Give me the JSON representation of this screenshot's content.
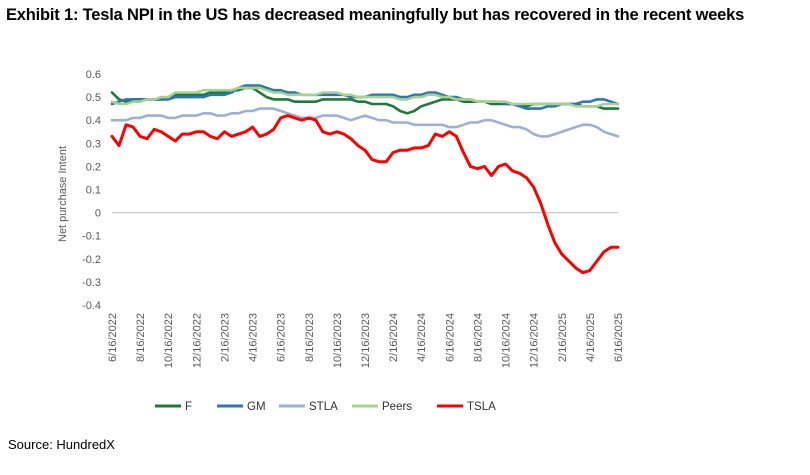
{
  "title": "Exhibit 1: Tesla NPI in the US has decreased meaningfully but has recovered in the recent weeks",
  "source": "Source: HundredX",
  "chart_data": {
    "type": "line",
    "ylabel": "Net purchase Intent",
    "ylim": [
      -0.4,
      0.6
    ],
    "yticks": [
      0.6,
      0.5,
      0.4,
      0.3,
      0.2,
      0.1,
      0,
      -0.1,
      -0.2,
      -0.3,
      -0.4
    ],
    "yticks_labels": [
      "0.6",
      "0.5",
      "0.4",
      "0.3",
      "0.2",
      "0.1",
      "0",
      "-0.1",
      "-0.2",
      "-0.3",
      "-0.4"
    ],
    "xticks": [
      "6/16/2022",
      "8/16/2022",
      "10/16/2022",
      "12/16/2022",
      "2/16/2023",
      "4/16/2023",
      "6/16/2023",
      "8/16/2023",
      "10/16/2023",
      "12/16/2023",
      "2/16/2024",
      "4/16/2024",
      "6/16/2024",
      "8/16/2024",
      "10/16/2024",
      "12/16/2024",
      "2/16/2025",
      "4/16/2025",
      "6/16/2025"
    ],
    "x_months_from_start": [
      0,
      0.5,
      1,
      1.5,
      2,
      2.5,
      3,
      3.5,
      4,
      4.5,
      5,
      5.5,
      6,
      6.5,
      7,
      7.5,
      8,
      8.5,
      9,
      9.5,
      10,
      10.5,
      11,
      11.5,
      12,
      12.5,
      13,
      13.5,
      14,
      14.5,
      15,
      15.5,
      16,
      16.5,
      17,
      17.5,
      18,
      18.5,
      19,
      19.5,
      20,
      20.5,
      21,
      21.5,
      22,
      22.5,
      23,
      23.5,
      24,
      24.5,
      25,
      25.5,
      26,
      26.5,
      27,
      27.5,
      28,
      28.5,
      29,
      29.5,
      30,
      30.5,
      31,
      31.5,
      32,
      32.5,
      33,
      33.5,
      34,
      34.5,
      35,
      35.5,
      36
    ],
    "grid": false,
    "legend_position": "bottom",
    "series": [
      {
        "name": "F",
        "color": "#1e7a38",
        "values": [
          0.52,
          0.49,
          0.48,
          0.49,
          0.49,
          0.49,
          0.49,
          0.49,
          0.5,
          0.51,
          0.51,
          0.51,
          0.51,
          0.51,
          0.52,
          0.52,
          0.52,
          0.53,
          0.53,
          0.54,
          0.54,
          0.52,
          0.5,
          0.49,
          0.49,
          0.49,
          0.48,
          0.48,
          0.48,
          0.48,
          0.49,
          0.49,
          0.49,
          0.49,
          0.49,
          0.48,
          0.48,
          0.47,
          0.47,
          0.47,
          0.46,
          0.44,
          0.43,
          0.44,
          0.46,
          0.47,
          0.48,
          0.49,
          0.49,
          0.49,
          0.48,
          0.48,
          0.48,
          0.48,
          0.47,
          0.47,
          0.47,
          0.47,
          0.46,
          0.46,
          0.47,
          0.47,
          0.47,
          0.47,
          0.47,
          0.47,
          0.47,
          0.46,
          0.46,
          0.46,
          0.45,
          0.45,
          0.45
        ]
      },
      {
        "name": "GM",
        "color": "#2e75b6",
        "values": [
          0.47,
          0.48,
          0.49,
          0.49,
          0.49,
          0.49,
          0.49,
          0.49,
          0.49,
          0.5,
          0.5,
          0.5,
          0.5,
          0.5,
          0.51,
          0.51,
          0.51,
          0.52,
          0.54,
          0.55,
          0.55,
          0.55,
          0.54,
          0.53,
          0.53,
          0.52,
          0.52,
          0.51,
          0.51,
          0.51,
          0.51,
          0.51,
          0.51,
          0.51,
          0.5,
          0.5,
          0.5,
          0.51,
          0.51,
          0.51,
          0.51,
          0.5,
          0.5,
          0.51,
          0.51,
          0.52,
          0.52,
          0.51,
          0.5,
          0.5,
          0.49,
          0.49,
          0.48,
          0.48,
          0.48,
          0.48,
          0.47,
          0.47,
          0.46,
          0.45,
          0.45,
          0.45,
          0.46,
          0.46,
          0.47,
          0.47,
          0.47,
          0.48,
          0.48,
          0.49,
          0.49,
          0.48,
          0.47
        ]
      },
      {
        "name": "STLA",
        "color": "#9dafd2",
        "values": [
          0.4,
          0.4,
          0.4,
          0.41,
          0.41,
          0.42,
          0.42,
          0.42,
          0.41,
          0.41,
          0.42,
          0.42,
          0.42,
          0.43,
          0.43,
          0.42,
          0.42,
          0.43,
          0.43,
          0.44,
          0.44,
          0.45,
          0.45,
          0.45,
          0.44,
          0.43,
          0.42,
          0.41,
          0.41,
          0.41,
          0.42,
          0.42,
          0.42,
          0.41,
          0.4,
          0.41,
          0.42,
          0.41,
          0.4,
          0.4,
          0.39,
          0.39,
          0.39,
          0.38,
          0.38,
          0.38,
          0.38,
          0.38,
          0.37,
          0.37,
          0.38,
          0.39,
          0.39,
          0.4,
          0.4,
          0.39,
          0.38,
          0.37,
          0.37,
          0.36,
          0.34,
          0.33,
          0.33,
          0.34,
          0.35,
          0.36,
          0.37,
          0.38,
          0.38,
          0.37,
          0.35,
          0.34,
          0.33
        ]
      },
      {
        "name": "Peers",
        "color": "#a9d18e",
        "values": [
          0.48,
          0.47,
          0.47,
          0.48,
          0.48,
          0.49,
          0.49,
          0.5,
          0.5,
          0.52,
          0.52,
          0.52,
          0.52,
          0.53,
          0.53,
          0.53,
          0.53,
          0.53,
          0.54,
          0.54,
          0.54,
          0.54,
          0.53,
          0.52,
          0.52,
          0.51,
          0.51,
          0.51,
          0.51,
          0.51,
          0.52,
          0.52,
          0.52,
          0.51,
          0.51,
          0.5,
          0.5,
          0.5,
          0.5,
          0.5,
          0.5,
          0.49,
          0.49,
          0.5,
          0.5,
          0.51,
          0.51,
          0.5,
          0.5,
          0.49,
          0.49,
          0.49,
          0.48,
          0.48,
          0.48,
          0.48,
          0.48,
          0.47,
          0.47,
          0.47,
          0.47,
          0.47,
          0.47,
          0.47,
          0.47,
          0.47,
          0.46,
          0.46,
          0.46,
          0.46,
          0.47,
          0.47,
          0.47
        ]
      },
      {
        "name": "TSLA",
        "color": "#ff0000",
        "values": [
          0.33,
          0.29,
          0.38,
          0.37,
          0.33,
          0.32,
          0.36,
          0.35,
          0.33,
          0.31,
          0.34,
          0.34,
          0.35,
          0.35,
          0.33,
          0.32,
          0.35,
          0.33,
          0.34,
          0.35,
          0.37,
          0.33,
          0.34,
          0.36,
          0.41,
          0.42,
          0.41,
          0.4,
          0.41,
          0.4,
          0.35,
          0.34,
          0.35,
          0.34,
          0.32,
          0.29,
          0.27,
          0.23,
          0.22,
          0.22,
          0.26,
          0.27,
          0.27,
          0.28,
          0.28,
          0.29,
          0.34,
          0.33,
          0.35,
          0.33,
          0.26,
          0.2,
          0.19,
          0.2,
          0.16,
          0.2,
          0.21,
          0.18,
          0.17,
          0.15,
          0.11,
          0.04,
          -0.05,
          -0.13,
          -0.18,
          -0.21,
          -0.24,
          -0.26,
          -0.25,
          -0.21,
          -0.17,
          -0.15,
          -0.15
        ]
      }
    ]
  }
}
